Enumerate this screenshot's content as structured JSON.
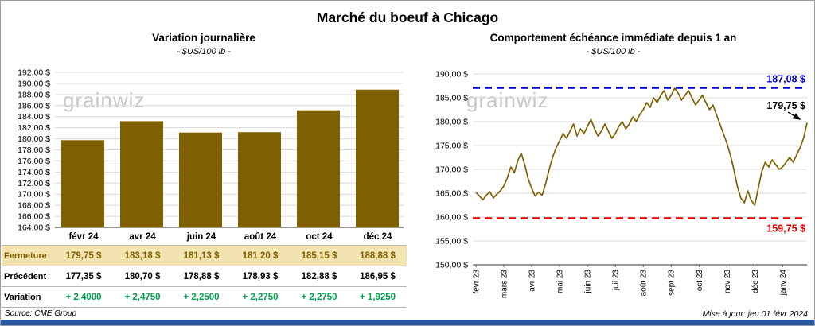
{
  "title": "Marché du boeuf à Chicago",
  "watermark": "grainwiz",
  "left": {
    "title": "Variation journalière",
    "subtitle": "- $US/100 lb -",
    "table": {
      "row_labels": [
        "Fermeture",
        "Précédent",
        "Variation"
      ],
      "columns": [
        "févr 24",
        "avr 24",
        "juin 24",
        "août 24",
        "oct 24",
        "déc 24"
      ],
      "fermeture": [
        "179,75  $",
        "183,18  $",
        "181,13  $",
        "181,20  $",
        "185,15  $",
        "188,88  $"
      ],
      "precedent": [
        "177,35  $",
        "180,70  $",
        "178,88  $",
        "178,93  $",
        "182,88  $",
        "186,95  $"
      ],
      "variation": [
        "+ 2,4000",
        "+ 2,4750",
        "+ 2,2500",
        "+ 2,2750",
        "+ 2,2750",
        "+ 1,9250"
      ]
    }
  },
  "right": {
    "title": "Comportement échéance immédiate depuis 1 an",
    "subtitle": "- $US/100 lb -",
    "annotations": {
      "high_label": "187,08 $",
      "low_label": "159,75 $",
      "last_label": "179,75 $"
    }
  },
  "footer": {
    "source": "Source: CME Group",
    "updated": "Mise à jour: jeu 01 févr 2024"
  },
  "colors": {
    "gold": "#7f6000",
    "tan_row": "#f2e3b0",
    "green": "#00a14b",
    "blue_line": "#0000d4",
    "red_line": "#e60000",
    "grid": "#d9d9d9",
    "axis": "#595959",
    "accent_strip": "#2a56a5"
  },
  "chart_data": [
    {
      "type": "bar",
      "title": "Variation journalière",
      "ylabel": "$US/100 lb",
      "categories": [
        "févr 24",
        "avr 24",
        "juin 24",
        "août 24",
        "oct 24",
        "déc 24"
      ],
      "values": [
        179.75,
        183.18,
        181.13,
        181.2,
        185.15,
        188.88
      ],
      "ylim": [
        164,
        192
      ],
      "ytick_step": 2,
      "grid": true,
      "bar_color": "#7f6000"
    },
    {
      "type": "line",
      "title": "Comportement échéance immédiate depuis 1 an",
      "ylabel": "$US/100 lb",
      "x_categories": [
        "févr 23",
        "mars 23",
        "avr 23",
        "mai 23",
        "juin 23",
        "juil 23",
        "août 23",
        "sept 23",
        "oct 23",
        "nov 23",
        "déc 23",
        "janv 24"
      ],
      "points_per_month": 8,
      "values": [
        165.2,
        164.4,
        163.6,
        164.6,
        165.3,
        164.0,
        164.8,
        165.5,
        166.5,
        168.2,
        170.5,
        169.3,
        171.8,
        173.4,
        171.0,
        168.0,
        166.0,
        164.4,
        165.2,
        164.6,
        167.0,
        170.0,
        172.5,
        174.5,
        176.0,
        177.5,
        176.5,
        178.0,
        179.5,
        177.0,
        178.5,
        177.5,
        179.0,
        180.5,
        178.5,
        177.0,
        178.0,
        179.5,
        178.0,
        176.5,
        177.5,
        179.0,
        180.0,
        178.5,
        179.5,
        181.0,
        180.0,
        181.5,
        182.5,
        184.0,
        183.0,
        185.0,
        184.0,
        185.5,
        186.5,
        184.5,
        185.5,
        187.0,
        186.0,
        184.5,
        185.5,
        186.5,
        185.0,
        183.5,
        184.5,
        185.5,
        184.0,
        182.5,
        183.5,
        181.5,
        179.5,
        177.5,
        175.5,
        173.0,
        170.0,
        166.5,
        164.0,
        163.0,
        165.5,
        163.5,
        162.5,
        166.0,
        169.5,
        171.5,
        170.5,
        172.0,
        171.0,
        170.0,
        170.5,
        171.5,
        172.5,
        171.5,
        173.0,
        174.5,
        176.5,
        179.75
      ],
      "ylim": [
        150,
        190
      ],
      "ytick_step": 5,
      "grid": true,
      "line_color": "#7f6000",
      "hline_high": 187.08,
      "hline_low": 159.75,
      "last_value": 179.75,
      "legend": "none"
    }
  ]
}
